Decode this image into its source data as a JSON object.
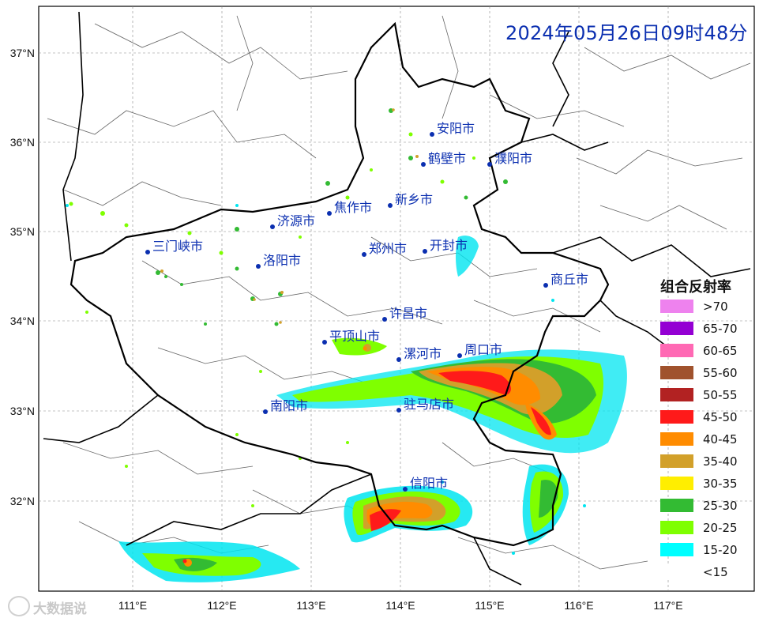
{
  "timestamp": "2024年05月26日09时48分",
  "legend": {
    "title": "组合反射率",
    "entries": [
      {
        "label": ">70",
        "color": "#ee82ee"
      },
      {
        "label": "65-70",
        "color": "#9400d3"
      },
      {
        "label": "60-65",
        "color": "#ff69b4"
      },
      {
        "label": "55-60",
        "color": "#a0522d"
      },
      {
        "label": "50-55",
        "color": "#b22222"
      },
      {
        "label": "45-50",
        "color": "#ff1a1a"
      },
      {
        "label": "40-45",
        "color": "#ff8c00"
      },
      {
        "label": "35-40",
        "color": "#d2a02a"
      },
      {
        "label": "30-35",
        "color": "#ffee00"
      },
      {
        "label": "25-30",
        "color": "#33bb33"
      },
      {
        "label": "20-25",
        "color": "#7fff00"
      },
      {
        "label": "15-20",
        "color": "#00ffff"
      },
      {
        "label": "<15",
        "color": "#ffffff"
      }
    ]
  },
  "axes": {
    "lat_labels": [
      "37°N",
      "36°N",
      "35°N",
      "34°N",
      "33°N",
      "32°N"
    ],
    "lon_labels": [
      "111°E",
      "112°E",
      "113°E",
      "114°E",
      "115°E",
      "116°E",
      "117°E"
    ]
  },
  "cities": [
    {
      "name": "安阳市"
    },
    {
      "name": "鹤壁市"
    },
    {
      "name": "濮阳市"
    },
    {
      "name": "新乡市"
    },
    {
      "name": "焦作市"
    },
    {
      "name": "济源市"
    },
    {
      "name": "三门峡市"
    },
    {
      "name": "洛阳市"
    },
    {
      "name": "郑州市"
    },
    {
      "name": "开封市"
    },
    {
      "name": "商丘市"
    },
    {
      "name": "许昌市"
    },
    {
      "name": "平顶山市"
    },
    {
      "name": "漯河市"
    },
    {
      "name": "周口市"
    },
    {
      "name": "南阳市"
    },
    {
      "name": "驻马店市"
    },
    {
      "name": "信阳市"
    }
  ],
  "watermark": "大数据说",
  "colors": {
    "city_text": "#0b2fb0",
    "border": "#000000",
    "admin_line": "#555555"
  }
}
